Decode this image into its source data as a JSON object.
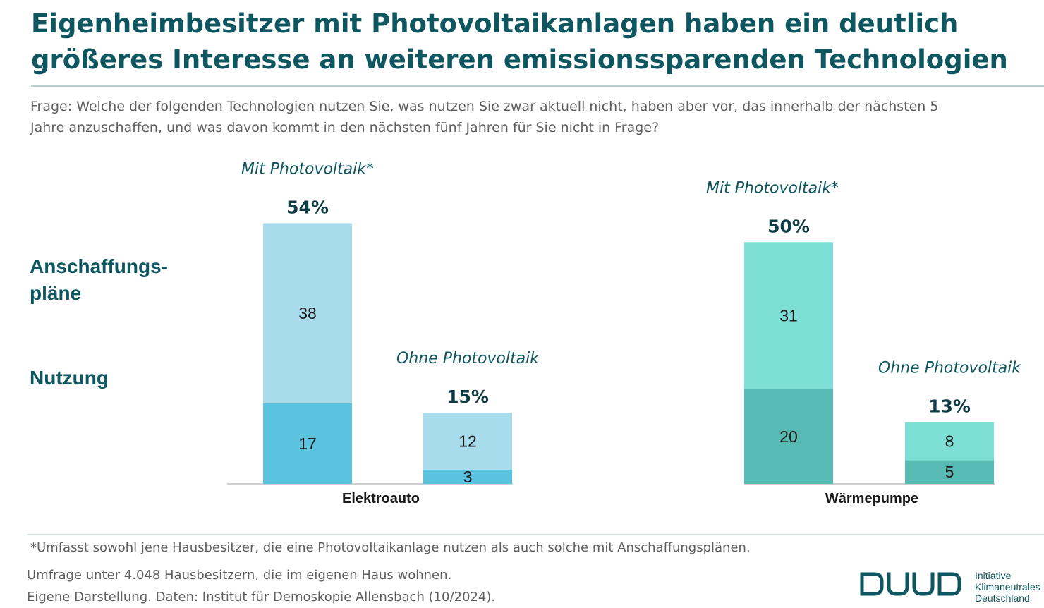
{
  "title": "Eigenheimbesitzer mit Photovoltaikanlagen haben ein deutlich größeres Interesse an weiteren emissionssparenden Technologien",
  "question": "Frage: Welche der folgenden Technologien nutzen Sie, was nutzen Sie zwar aktuell nicht, haben aber vor, das innerhalb der nächsten 5 Jahre anzuschaffen, und was davon kommt in den nächsten fünf Jahren für Sie nicht in Frage?",
  "row_labels": {
    "plans": "Anschaffungs-pläne",
    "use": "Nutzung"
  },
  "chart_data": {
    "type": "bar",
    "stacked": true,
    "unit": "%",
    "categories": [
      "Elektroauto",
      "Wärmepumpe"
    ],
    "groups": [
      "Mit Photovoltaik*",
      "Ohne Photovoltaik"
    ],
    "series": [
      {
        "name": "Nutzung",
        "values": [
          [
            17,
            3
          ],
          [
            20,
            5
          ]
        ]
      },
      {
        "name": "Anschaffungspläne",
        "values": [
          [
            38,
            12
          ],
          [
            31,
            8
          ]
        ]
      }
    ],
    "totals": [
      [
        "54%",
        "15%"
      ],
      [
        "50%",
        "13%"
      ]
    ],
    "colors": {
      "Elektroauto": {
        "Nutzung": "#5bc3de",
        "Anschaffungspläne": "#a8dced"
      },
      "Wärmepumpe": {
        "Nutzung": "#57bbb3",
        "Anschaffungspläne": "#7ddfd5"
      }
    },
    "grid": false,
    "legend": "none"
  },
  "footnote": "*Umfasst sowohl jene Hausbesitzer, die eine Photovoltaikanlage nutzen als auch solche mit Anschaffungsplänen.",
  "notes": [
    "Umfrage unter 4.048 Hausbesitzern, die im eigenen Haus wohnen.",
    "Eigene Darstellung. Daten: Institut für Demoskopie Allensbach (10/2024)."
  ],
  "logo": {
    "line1": "Initiative",
    "line2": "Klimaneutrales",
    "line3": "Deutschland"
  }
}
